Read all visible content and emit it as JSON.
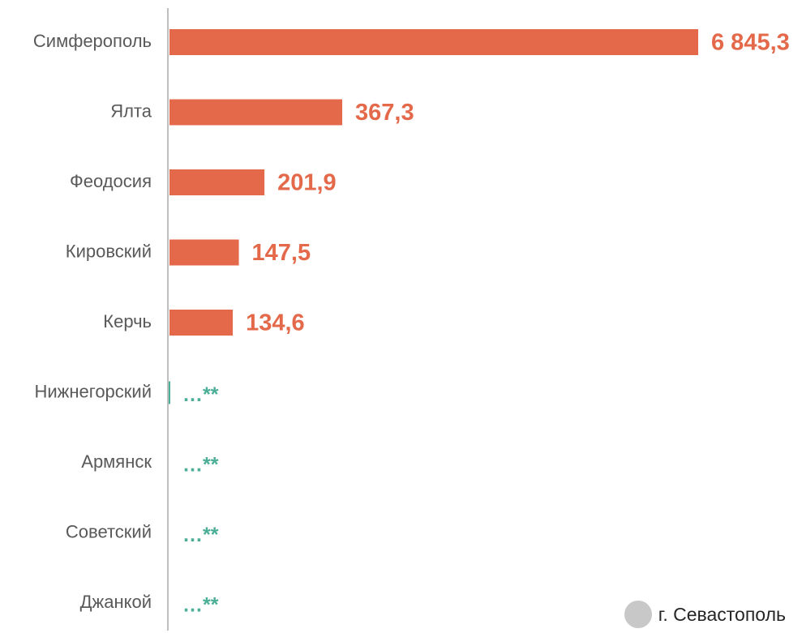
{
  "chart_data": {
    "type": "bar",
    "orientation": "horizontal",
    "categories": [
      "Симферополь",
      "Ялта",
      "Феодосия",
      "Кировский",
      "Керчь",
      "Нижнегорский",
      "Армянск",
      "Советский",
      "Джанкой"
    ],
    "values": [
      6845.3,
      367.3,
      201.9,
      147.5,
      134.6,
      null,
      null,
      null,
      null
    ],
    "value_labels": [
      "6 845,3",
      "367,3",
      "201,9",
      "147,5",
      "134,6",
      "…**",
      "…**",
      "…**",
      "…**"
    ],
    "axis_break": true,
    "colors": {
      "bar": "#E4694A",
      "na": "#4BAE97",
      "axis": "#BFBFBF",
      "legend_marker": "#C8C8C8"
    }
  },
  "legend": {
    "label": "г. Севастополь"
  }
}
